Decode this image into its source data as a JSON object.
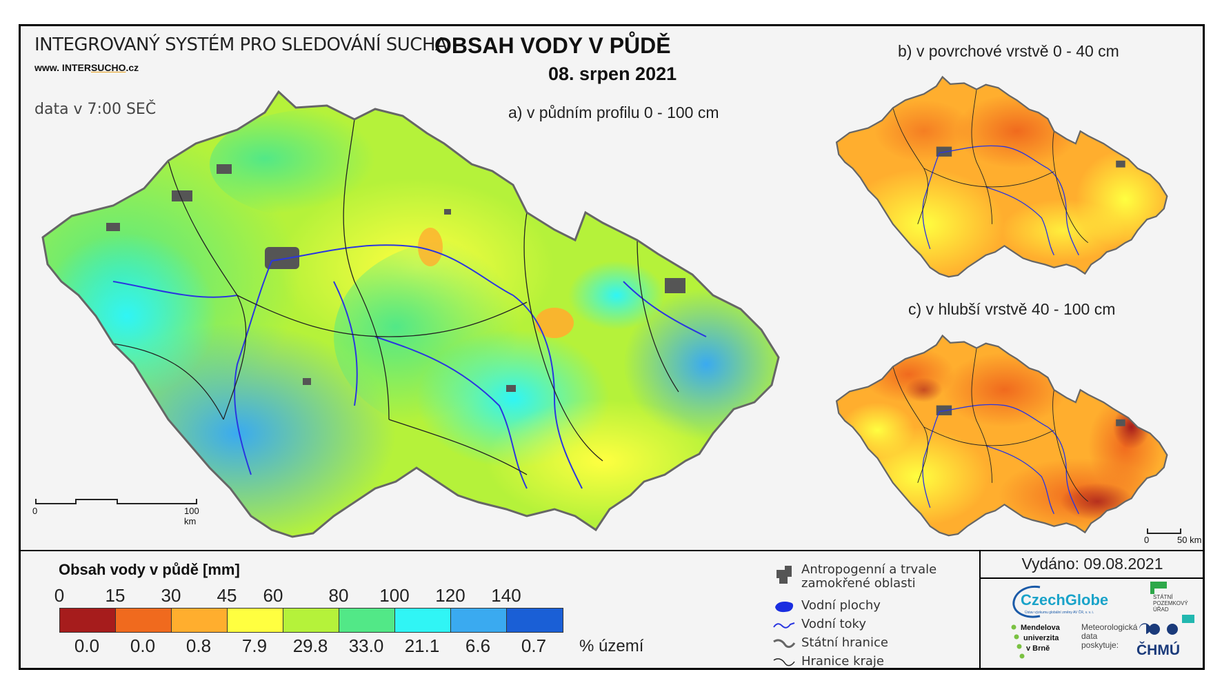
{
  "header": {
    "system_title": "INTEGROVANÝ SYSTÉM PRO SLEDOVÁNÍ SUCHA",
    "website_prefix": "www. INTER",
    "website_brand": "SUCHO",
    "website_suffix": ".cz",
    "data_time": "data v 7:00 SEČ",
    "main_title": "OBSAH VODY V PŮDĚ",
    "date": "08. srpen 2021"
  },
  "maps": {
    "a_label": "a) v půdním profilu 0 - 100 cm",
    "b_label": "b) v povrchové vrstvě 0 - 40 cm",
    "c_label": "c) v hlubší vrstvě 40 - 100 cm",
    "scale_main": {
      "start": "0",
      "end": "100 km"
    },
    "scale_small": {
      "start": "0",
      "end": "50 km"
    }
  },
  "legend": {
    "title": "Obsah vody v půdě  [mm]",
    "breaks": [
      "0",
      "15",
      "30",
      "45",
      "60",
      "80",
      "100",
      "120",
      "140"
    ],
    "colors": [
      "#a61c1c",
      "#f06a1e",
      "#ffae2e",
      "#ffff40",
      "#b5f23a",
      "#52e887",
      "#30f5f5",
      "#3aaaf0",
      "#1a5fd6"
    ],
    "percent_values": [
      "0.0",
      "0.0",
      "0.8",
      "7.9",
      "29.8",
      "33.0",
      "21.1",
      "6.6",
      "0.7"
    ],
    "percent_unit": "% území"
  },
  "symbols": [
    {
      "icon": "urban-area-icon",
      "label": "Antropogenní a trvale zamokřené oblasti"
    },
    {
      "icon": "water-body-icon",
      "label": "Vodní plochy"
    },
    {
      "icon": "river-icon",
      "label": "Vodní toky"
    },
    {
      "icon": "state-border-icon",
      "label": "Státní hranice"
    },
    {
      "icon": "region-border-icon",
      "label": "Hranice kraje"
    }
  ],
  "footer": {
    "issued": "Vydáno: 09.08.2021",
    "czechglobe": "CzechGlobe",
    "czechglobe_sub": "Ústav výzkumu globální změny AV ČR, v. v. i.",
    "spu": [
      "STÁTNÍ",
      "POZEMKOVÝ",
      "ÚŘAD"
    ],
    "mendelu": [
      "Mendelova",
      "univerzita",
      "v Brně"
    ],
    "meteo": [
      "Meteorologická",
      "data",
      "poskytuje:"
    ],
    "chmu": "ČHMÚ"
  }
}
